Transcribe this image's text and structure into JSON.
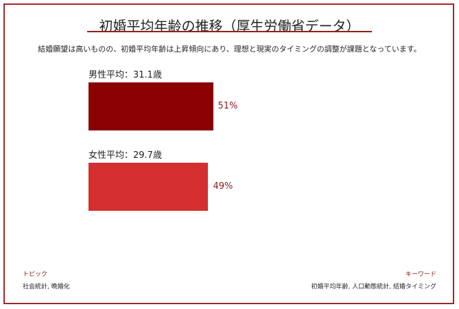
{
  "title": "初婚平均年齢の推移（厚生労働省データ）",
  "subtitle": "結婚願望は高いものの、初婚平均年齢は上昇傾向にあり、理想と現実のタイミングの調整が課題となっています。",
  "colors": {
    "accent": "#9b1b1b",
    "male": "#8b0000",
    "female": "#d32f2f",
    "label": "#8b1a1a"
  },
  "chart_data": {
    "type": "bar",
    "orientation": "horizontal",
    "categories": [
      "男性平均：31.1歳",
      "女性平均：29.7歳"
    ],
    "values": [
      51,
      49
    ],
    "value_labels": [
      "51%",
      "49%"
    ],
    "xlim": [
      0,
      100
    ]
  },
  "footer": {
    "topic_label": "トピック",
    "topic_value": "社会統計, 晩婚化",
    "keyword_label": "キーワード",
    "keyword_value": "初婚平均年齢, 人口動態統計, 結婚タイミング"
  }
}
